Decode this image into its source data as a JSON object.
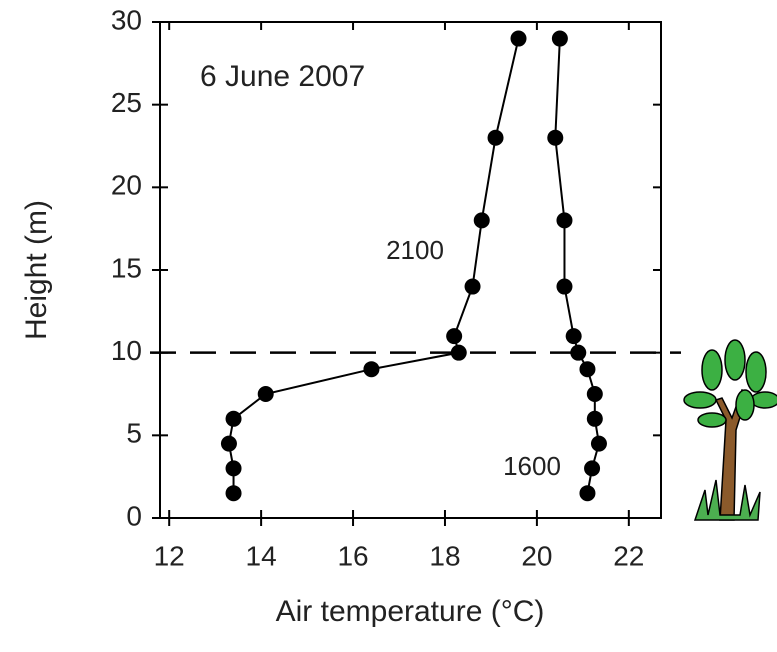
{
  "chart_data": {
    "type": "line",
    "xlabel": "Air temperature (°C)",
    "ylabel": "Height (m)",
    "annotations": [
      "6 June 2007"
    ],
    "xlim": [
      11.8,
      22.7
    ],
    "xticks": [
      12,
      14,
      16,
      18,
      20,
      22
    ],
    "ylim": [
      0,
      30
    ],
    "yticks": [
      0,
      5,
      10,
      15,
      20,
      25,
      30
    ],
    "hline": 10,
    "series": [
      {
        "name": "2100",
        "color": "#000000",
        "x": [
          13.4,
          13.4,
          13.3,
          13.4,
          14.1,
          16.4,
          18.3,
          18.2,
          18.6,
          18.8,
          19.1,
          19.6
        ],
        "values": [
          1.5,
          3,
          4.5,
          6,
          7.5,
          9,
          10,
          11,
          14,
          18,
          23,
          29
        ]
      },
      {
        "name": "1600",
        "color": "#000000",
        "x": [
          21.1,
          21.2,
          21.35,
          21.26,
          21.26,
          21.1,
          20.9,
          20.8,
          20.6,
          20.6,
          20.4,
          20.5
        ],
        "values": [
          1.5,
          3,
          4.5,
          6,
          7.5,
          9,
          10,
          11,
          14,
          18,
          23,
          29
        ]
      }
    ]
  }
}
